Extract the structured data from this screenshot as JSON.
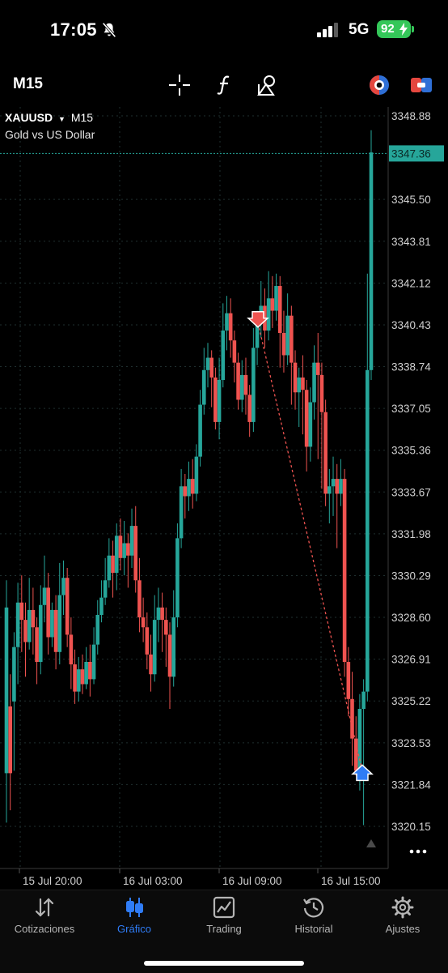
{
  "status": {
    "time": "17:05",
    "network": "5G",
    "battery": "92"
  },
  "toolbar": {
    "timeframe": "M15"
  },
  "symbol": {
    "name": "XAUUSD",
    "timeframe": "M15",
    "description": "Gold vs US Dollar"
  },
  "price_axis": {
    "labels": [
      "3348.88",
      "3345.50",
      "3343.81",
      "3342.12",
      "3340.43",
      "3338.74",
      "3337.05",
      "3335.36",
      "3333.67",
      "3331.98",
      "3330.29",
      "3328.60",
      "3326.91",
      "3325.22",
      "3323.53",
      "3321.84",
      "3320.15"
    ],
    "current_price": "3347.36"
  },
  "time_axis": {
    "labels": [
      "15 Jul 20:00",
      "16 Jul 03:00",
      "16 Jul 09:00",
      "16 Jul 15:00"
    ]
  },
  "colors": {
    "bull": "#26a69a",
    "bear": "#ef5350",
    "grid": "#1f2f2f",
    "axis_text": "#d0d0d0",
    "current_price_bg": "#26a69a",
    "sell_arrow": "#ef5350",
    "buy_arrow": "#2f7cf6",
    "tab_active": "#2f7cf6"
  },
  "chart_data": {
    "type": "candlestick",
    "symbol": "XAUUSD",
    "timeframe": "M15",
    "ylim": [
      3319.3,
      3349.5
    ],
    "trade": {
      "sell_price": 3340.5,
      "buy_price": 3322.4
    },
    "candles": [
      [
        3322.3,
        3329.0,
        3320.3,
        3330.1
      ],
      [
        3325.0,
        3322.3,
        3320.8,
        3326.3
      ],
      [
        3325.2,
        3327.4,
        3322.4,
        3328.0
      ],
      [
        3327.4,
        3329.2,
        3325.9,
        3330.0
      ],
      [
        3329.2,
        3328.5,
        3327.2,
        3330.3
      ],
      [
        3328.5,
        3327.6,
        3326.2,
        3329.2
      ],
      [
        3327.6,
        3328.9,
        3327.3,
        3330.2
      ],
      [
        3328.9,
        3328.2,
        3327.1,
        3329.8
      ],
      [
        3328.2,
        3326.8,
        3325.9,
        3328.6
      ],
      [
        3326.8,
        3329.1,
        3326.3,
        3329.9
      ],
      [
        3329.1,
        3329.8,
        3328.4,
        3331.1
      ],
      [
        3329.8,
        3327.8,
        3327.1,
        3330.4
      ],
      [
        3327.8,
        3328.9,
        3327.4,
        3329.2
      ],
      [
        3328.9,
        3327.2,
        3326.5,
        3329.5
      ],
      [
        3327.2,
        3329.5,
        3326.7,
        3330.8
      ],
      [
        3329.5,
        3330.2,
        3328.7,
        3330.9
      ],
      [
        3330.2,
        3327.9,
        3327.4,
        3330.6
      ],
      [
        3327.9,
        3326.7,
        3325.7,
        3328.6
      ],
      [
        3326.7,
        3325.6,
        3325.1,
        3327.3
      ],
      [
        3325.6,
        3326.5,
        3325.2,
        3327.0
      ],
      [
        3326.5,
        3325.9,
        3325.5,
        3327.1
      ],
      [
        3325.9,
        3326.8,
        3325.7,
        3327.4
      ],
      [
        3326.8,
        3326.1,
        3325.4,
        3327.5
      ],
      [
        3326.1,
        3327.5,
        3325.9,
        3328.2
      ],
      [
        3327.5,
        3328.7,
        3327.1,
        3329.3
      ],
      [
        3328.7,
        3329.4,
        3328.4,
        3330.1
      ],
      [
        3329.4,
        3330.1,
        3329.1,
        3331.0
      ],
      [
        3330.1,
        3331.1,
        3329.8,
        3331.8
      ],
      [
        3331.1,
        3330.4,
        3329.4,
        3331.7
      ],
      [
        3330.4,
        3331.9,
        3329.7,
        3332.4
      ],
      [
        3331.9,
        3331.0,
        3330.5,
        3332.6
      ],
      [
        3331.0,
        3331.6,
        3330.3,
        3332.5
      ],
      [
        3331.6,
        3331.1,
        3329.8,
        3332.0
      ],
      [
        3331.1,
        3332.3,
        3330.6,
        3333.0
      ],
      [
        3332.3,
        3330.1,
        3329.6,
        3333.1
      ],
      [
        3330.1,
        3328.6,
        3328.0,
        3331.0
      ],
      [
        3328.6,
        3328.2,
        3327.6,
        3329.4
      ],
      [
        3328.2,
        3327.1,
        3326.5,
        3328.8
      ],
      [
        3327.1,
        3326.3,
        3325.6,
        3327.9
      ],
      [
        3326.3,
        3328.5,
        3326.0,
        3329.5
      ],
      [
        3328.5,
        3329.0,
        3327.6,
        3329.8
      ],
      [
        3329.0,
        3328.5,
        3327.2,
        3329.6
      ],
      [
        3328.5,
        3327.9,
        3326.6,
        3329.0
      ],
      [
        3327.9,
        3326.2,
        3324.9,
        3328.4
      ],
      [
        3326.2,
        3328.6,
        3325.8,
        3329.7
      ],
      [
        3328.6,
        3331.8,
        3328.2,
        3332.4
      ],
      [
        3331.8,
        3333.9,
        3331.4,
        3334.6
      ],
      [
        3333.9,
        3333.5,
        3332.6,
        3334.4
      ],
      [
        3333.5,
        3334.2,
        3332.9,
        3334.9
      ],
      [
        3334.2,
        3333.6,
        3333.0,
        3335.0
      ],
      [
        3333.6,
        3335.1,
        3333.3,
        3335.6
      ],
      [
        3335.1,
        3337.2,
        3334.7,
        3337.8
      ],
      [
        3337.2,
        3338.6,
        3336.8,
        3339.5
      ],
      [
        3338.6,
        3339.1,
        3337.9,
        3339.7
      ],
      [
        3339.1,
        3338.3,
        3337.1,
        3339.4
      ],
      [
        3338.3,
        3336.5,
        3336.2,
        3338.7
      ],
      [
        3336.5,
        3338.2,
        3335.8,
        3339.1
      ],
      [
        3338.2,
        3340.2,
        3337.9,
        3341.3
      ],
      [
        3340.2,
        3340.9,
        3339.4,
        3341.6
      ],
      [
        3340.9,
        3339.8,
        3339.1,
        3341.5
      ],
      [
        3339.8,
        3338.9,
        3338.1,
        3340.2
      ],
      [
        3338.9,
        3337.4,
        3337.0,
        3339.3
      ],
      [
        3337.4,
        3338.4,
        3336.9,
        3339.0
      ],
      [
        3338.4,
        3337.6,
        3336.8,
        3339.1
      ],
      [
        3337.6,
        3336.5,
        3335.9,
        3338.0
      ],
      [
        3336.5,
        3339.5,
        3336.1,
        3340.3
      ],
      [
        3339.5,
        3340.5,
        3338.8,
        3341.0
      ],
      [
        3340.5,
        3341.2,
        3339.9,
        3342.2
      ],
      [
        3341.2,
        3340.2,
        3339.5,
        3341.9
      ],
      [
        3340.2,
        3341.5,
        3339.8,
        3342.6
      ],
      [
        3341.5,
        3341.0,
        3340.3,
        3342.4
      ],
      [
        3341.0,
        3342.0,
        3340.6,
        3342.5
      ],
      [
        3342.0,
        3340.1,
        3338.7,
        3342.4
      ],
      [
        3340.1,
        3339.2,
        3338.5,
        3341.0
      ],
      [
        3339.2,
        3340.8,
        3338.8,
        3341.7
      ],
      [
        3340.8,
        3338.9,
        3337.2,
        3341.2
      ],
      [
        3338.9,
        3337.7,
        3337.0,
        3339.4
      ],
      [
        3337.7,
        3338.3,
        3336.3,
        3338.7
      ],
      [
        3338.3,
        3337.8,
        3336.0,
        3339.2
      ],
      [
        3337.8,
        3335.5,
        3334.5,
        3338.2
      ],
      [
        3335.5,
        3337.3,
        3334.9,
        3337.9
      ],
      [
        3337.3,
        3338.9,
        3336.6,
        3339.6
      ],
      [
        3338.9,
        3338.4,
        3335.0,
        3340.1
      ],
      [
        3338.4,
        3336.9,
        3333.8,
        3338.9
      ],
      [
        3336.9,
        3333.6,
        3333.1,
        3337.4
      ],
      [
        3333.6,
        3333.9,
        3332.4,
        3334.6
      ],
      [
        3333.9,
        3334.2,
        3332.7,
        3335.1
      ],
      [
        3334.2,
        3333.6,
        3331.4,
        3334.8
      ],
      [
        3333.6,
        3334.2,
        3333.1,
        3335.0
      ],
      [
        3334.2,
        3326.8,
        3326.2,
        3334.6
      ],
      [
        3326.8,
        3325.3,
        3324.6,
        3327.4
      ],
      [
        3325.3,
        3323.7,
        3322.6,
        3326.4
      ],
      [
        3323.7,
        3322.4,
        3322.2,
        3324.6
      ],
      [
        3322.4,
        3324.9,
        3321.6,
        3325.5
      ],
      [
        3324.9,
        3325.6,
        3320.2,
        3326.1
      ],
      [
        3325.6,
        3338.6,
        3325.2,
        3342.5
      ],
      [
        3338.6,
        3347.4,
        3338.2,
        3348.3
      ]
    ]
  },
  "tabs": [
    {
      "label": "Cotizaciones"
    },
    {
      "label": "Gráfico"
    },
    {
      "label": "Trading"
    },
    {
      "label": "Historial"
    },
    {
      "label": "Ajustes"
    }
  ]
}
